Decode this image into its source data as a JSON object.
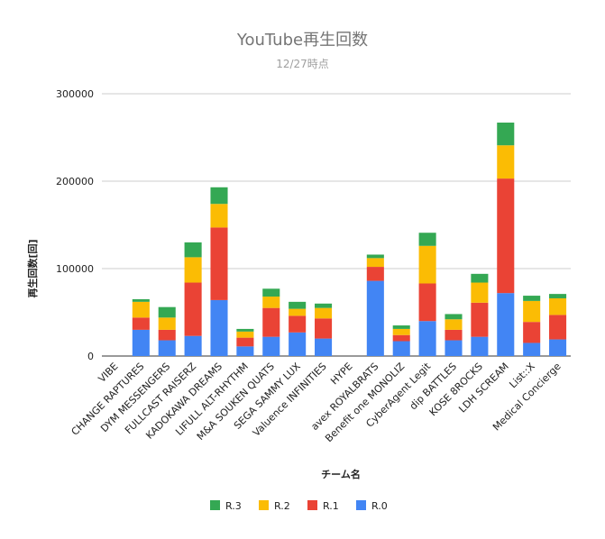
{
  "chart_data": {
    "type": "bar",
    "stacked": true,
    "title": "YouTube再生回数",
    "subtitle": "12/27時点",
    "xlabel": "チーム名",
    "ylabel": "再生回数[回]",
    "ylim": [
      0,
      300000
    ],
    "yticks": [
      "0",
      "100000",
      "200000",
      "300000"
    ],
    "ytick_values": [
      0,
      100000,
      200000,
      300000
    ],
    "grid": true,
    "legend_position": "bottom",
    "categories": [
      "VIBE",
      "CHANGE RAPTURES",
      "DYM MESSENGERS",
      "FULLCAST RAISERZ",
      "KADOKAWA DREAMS",
      "LIFULL ALT-RHYTHM",
      "M&A SOUKEN QUATS",
      "SEGA SAMMY LUX",
      "Valuence INFINITIES",
      "HYPE",
      "avex ROYALBRATS",
      "Benefit one MONOLIZ",
      "CyberAgent Legit",
      "dip BATTLES",
      "KOSE 8ROCKS",
      "LDH SCREAM",
      "List::X",
      "Medical Concierge"
    ],
    "series": [
      {
        "name": "R.0",
        "color": "#4285f4",
        "values": [
          0,
          30000,
          18000,
          23000,
          64000,
          11000,
          22000,
          27000,
          20000,
          0,
          86000,
          17000,
          40000,
          18000,
          22000,
          72000,
          15000,
          19000
        ]
      },
      {
        "name": "R.1",
        "color": "#ea4335",
        "values": [
          0,
          14000,
          12000,
          61000,
          83000,
          10000,
          33000,
          19000,
          23000,
          0,
          16000,
          7000,
          43000,
          12000,
          39000,
          131000,
          24000,
          28000
        ]
      },
      {
        "name": "R.2",
        "color": "#fbbc04",
        "values": [
          0,
          18000,
          14000,
          29000,
          27000,
          7000,
          13000,
          8000,
          12000,
          0,
          10000,
          7000,
          43000,
          12000,
          23000,
          38000,
          24000,
          19000
        ]
      },
      {
        "name": "R.3",
        "color": "#34a853",
        "values": [
          0,
          3000,
          12000,
          17000,
          19000,
          3000,
          9000,
          8000,
          5000,
          0,
          4000,
          4000,
          15000,
          6000,
          10000,
          26000,
          6000,
          5000
        ]
      }
    ],
    "legend_order": [
      "R.3",
      "R.2",
      "R.1",
      "R.0"
    ]
  }
}
